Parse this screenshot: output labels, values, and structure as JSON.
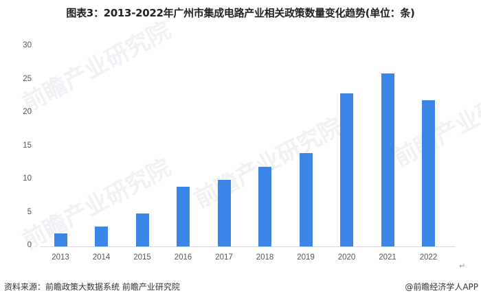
{
  "chart_data": {
    "type": "bar",
    "title": "图表3：2013-2022年广州市集成电路产业相关政策数量变化趋势(单位：条)",
    "xlabel": "",
    "ylabel": "",
    "categories": [
      "2013",
      "2014",
      "2015",
      "2016",
      "2017",
      "2018",
      "2019",
      "2020",
      "2021",
      "2022"
    ],
    "values": [
      2,
      3,
      5,
      9,
      10,
      12,
      14,
      23,
      26,
      22
    ],
    "ylim": [
      0,
      30
    ],
    "yticks": [
      "0",
      "5",
      "10",
      "15",
      "20",
      "25",
      "30"
    ],
    "grid": false,
    "legend": null,
    "bar_color": "#3a85e6"
  },
  "footer": {
    "source": "资料来源：前瞻政策大数据系统 前瞻产业研究院",
    "credit": "@前瞻经济学人APP"
  },
  "watermark": "前瞻产业研究院"
}
